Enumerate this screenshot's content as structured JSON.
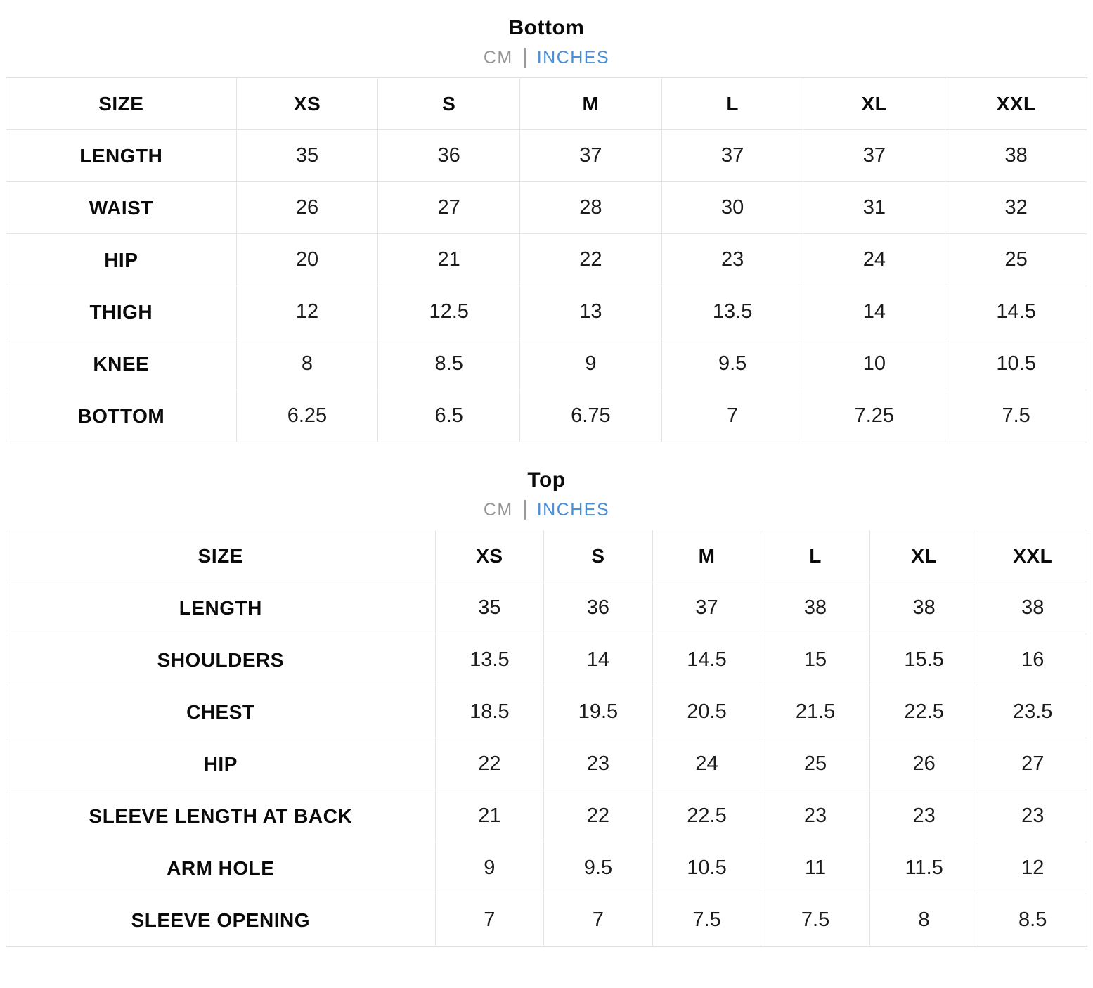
{
  "colors": {
    "accent_blue": "#4a90d8",
    "muted_gray": "#969696",
    "border_gray": "#e3e3e3",
    "text_black": "#0a0a0a"
  },
  "sections": [
    {
      "title": "Bottom",
      "units": {
        "cm": "CM",
        "inches": "INCHES",
        "selected": "INCHES"
      },
      "table": {
        "header": [
          "SIZE",
          "XS",
          "S",
          "M",
          "L",
          "XL",
          "XXL"
        ],
        "rows": [
          {
            "label": "LENGTH",
            "values": [
              "35",
              "36",
              "37",
              "37",
              "37",
              "38"
            ]
          },
          {
            "label": "WAIST",
            "values": [
              "26",
              "27",
              "28",
              "30",
              "31",
              "32"
            ]
          },
          {
            "label": "HIP",
            "values": [
              "20",
              "21",
              "22",
              "23",
              "24",
              "25"
            ]
          },
          {
            "label": "THIGH",
            "values": [
              "12",
              "12.5",
              "13",
              "13.5",
              "14",
              "14.5"
            ]
          },
          {
            "label": "KNEE",
            "values": [
              "8",
              "8.5",
              "9",
              "9.5",
              "10",
              "10.5"
            ]
          },
          {
            "label": "BOTTOM",
            "values": [
              "6.25",
              "6.5",
              "6.75",
              "7",
              "7.25",
              "7.5"
            ]
          }
        ]
      }
    },
    {
      "title": "Top",
      "units": {
        "cm": "CM",
        "inches": "INCHES",
        "selected": "INCHES"
      },
      "table": {
        "header": [
          "SIZE",
          "XS",
          "S",
          "M",
          "L",
          "XL",
          "XXL"
        ],
        "rows": [
          {
            "label": "LENGTH",
            "values": [
              "35",
              "36",
              "37",
              "38",
              "38",
              "38"
            ]
          },
          {
            "label": "SHOULDERS",
            "values": [
              "13.5",
              "14",
              "14.5",
              "15",
              "15.5",
              "16"
            ]
          },
          {
            "label": "CHEST",
            "values": [
              "18.5",
              "19.5",
              "20.5",
              "21.5",
              "22.5",
              "23.5"
            ]
          },
          {
            "label": "HIP",
            "values": [
              "22",
              "23",
              "24",
              "25",
              "26",
              "27"
            ]
          },
          {
            "label": "SLEEVE LENGTH AT BACK",
            "values": [
              "21",
              "22",
              "22.5",
              "23",
              "23",
              "23"
            ]
          },
          {
            "label": "ARM HOLE",
            "values": [
              "9",
              "9.5",
              "10.5",
              "11",
              "11.5",
              "12"
            ]
          },
          {
            "label": "SLEEVE OPENING",
            "values": [
              "7",
              "7",
              "7.5",
              "7.5",
              "8",
              "8.5"
            ]
          }
        ]
      }
    }
  ]
}
